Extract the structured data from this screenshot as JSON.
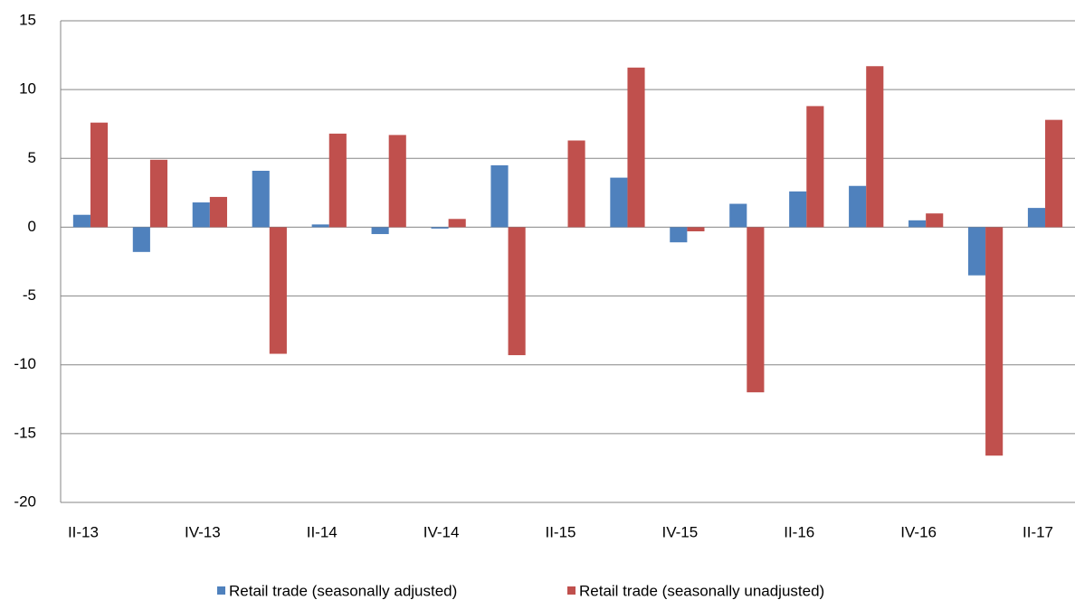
{
  "chart_data": {
    "type": "bar",
    "categories": [
      "II-13",
      null,
      "IV-13",
      null,
      "II-14",
      null,
      "IV-14",
      null,
      "II-15",
      null,
      "IV-15",
      null,
      "II-16",
      null,
      "IV-16",
      null,
      "II-17"
    ],
    "series": [
      {
        "name": "Retail trade (seasonally adjusted)",
        "color": "#4f81bd",
        "values": [
          0.9,
          -1.8,
          1.8,
          4.1,
          0.2,
          -0.5,
          -0.1,
          4.5,
          0,
          3.6,
          -1.1,
          1.7,
          2.6,
          3.0,
          0.5,
          -3.5,
          1.4
        ]
      },
      {
        "name": "Retail trade (seasonally unadjusted)",
        "color": "#c0504d",
        "values": [
          7.6,
          4.9,
          2.2,
          -9.2,
          6.8,
          6.7,
          0.6,
          -9.3,
          6.3,
          11.6,
          -0.3,
          -12.0,
          8.8,
          11.7,
          1.0,
          -16.6,
          7.8
        ]
      }
    ],
    "ylim": [
      -20,
      15
    ],
    "yticks": [
      -20,
      -15,
      -10,
      -5,
      0,
      5,
      10,
      15
    ],
    "grid": true,
    "legend": "bottom"
  }
}
